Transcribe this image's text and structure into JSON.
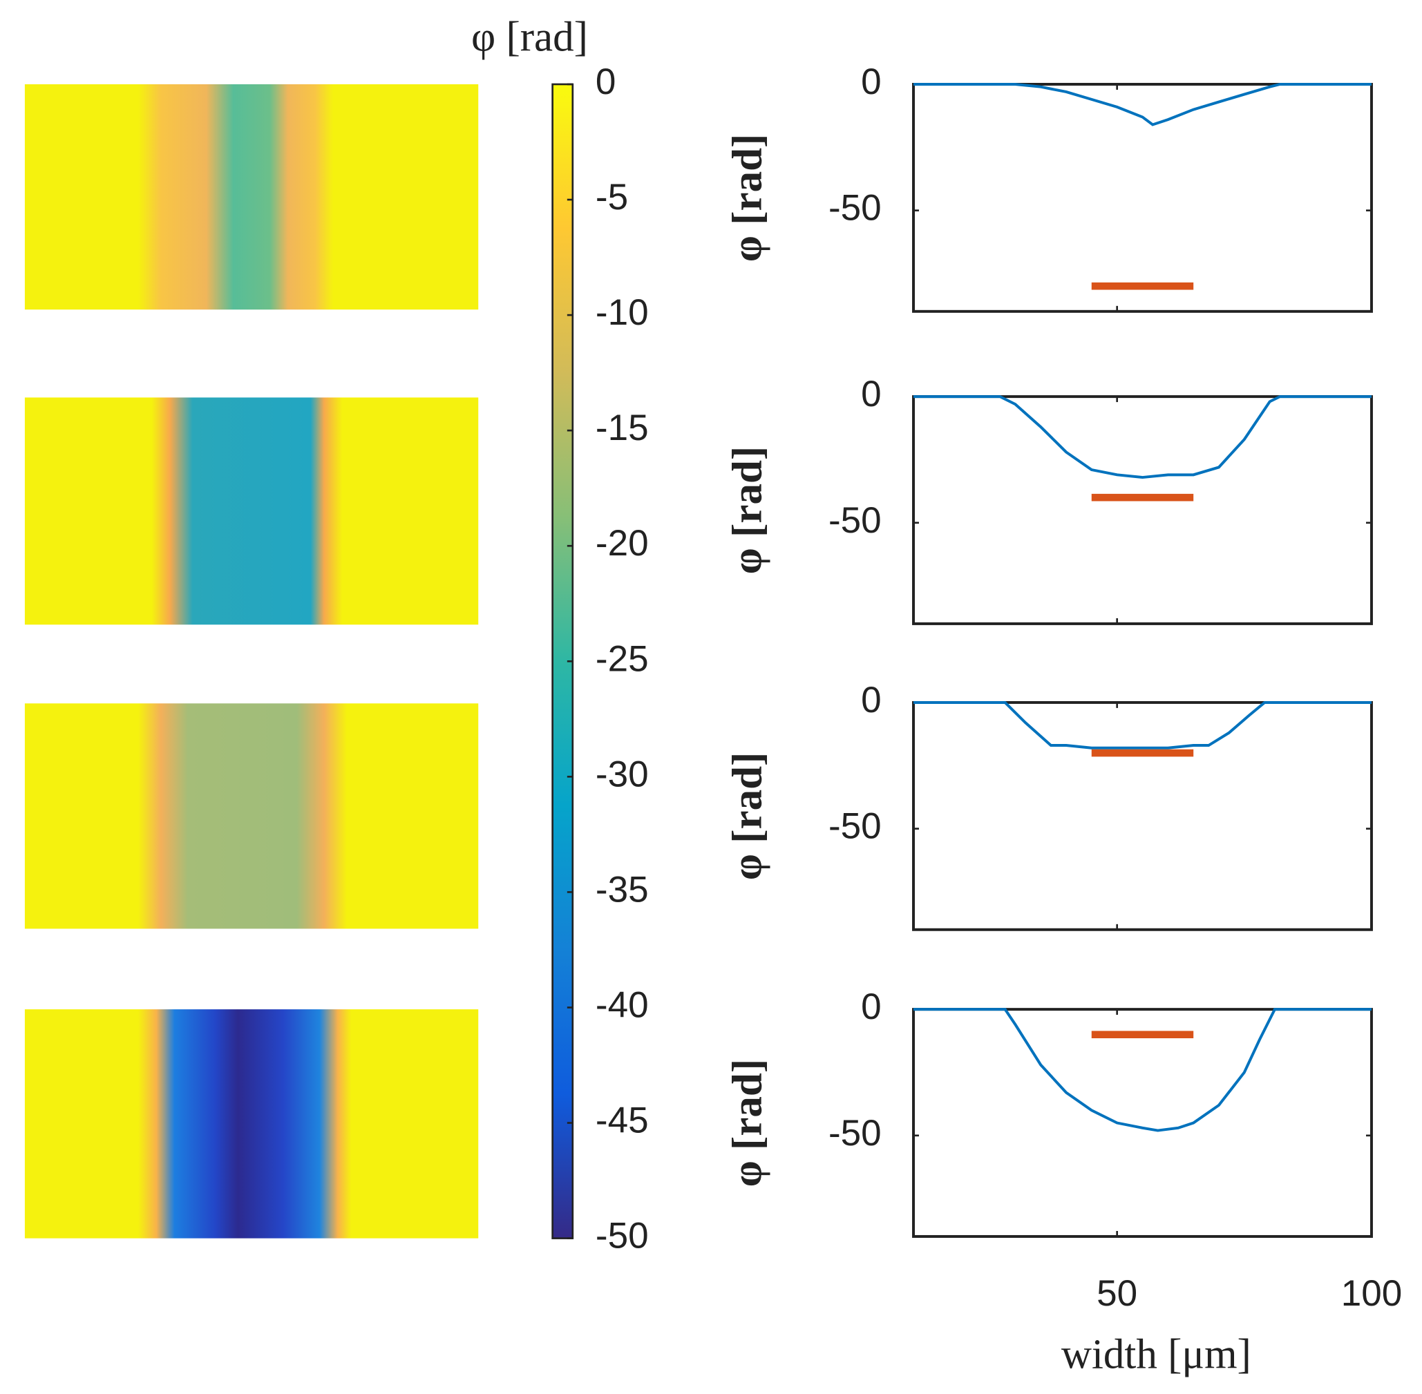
{
  "chart_data": [
    {
      "type": "colorbar",
      "label": "φ [rad]",
      "ylim": [
        -50,
        0
      ],
      "yticks": [
        0,
        -5,
        -10,
        -15,
        -20,
        -25,
        -30,
        -35,
        -40,
        -45,
        -50
      ],
      "colors": [
        "#352a87",
        "#0f5cdd",
        "#1481d6",
        "#06a4ca",
        "#2eb7a4",
        "#87bf77",
        "#d1bb59",
        "#fec832",
        "#f9fb0e"
      ]
    },
    {
      "type": "line",
      "ylabel": "φ [rad]",
      "xlim": [
        10,
        100
      ],
      "ylim": [
        -90,
        0
      ],
      "xticks": [
        50,
        100
      ],
      "yticks": [
        0,
        -50
      ],
      "show_xticklabels": false,
      "series": [
        {
          "color": "#0072bd",
          "x": [
            10,
            20,
            30,
            35,
            40,
            45,
            50,
            55,
            57,
            60,
            65,
            70,
            75,
            80,
            82,
            85,
            90,
            100
          ],
          "values": [
            0,
            0,
            0,
            -1,
            -3,
            -6,
            -9,
            -13,
            -16,
            -14,
            -10,
            -7,
            -4,
            -1,
            0,
            0,
            0,
            0
          ]
        },
        {
          "color": "#d95319",
          "x": [
            45,
            65
          ],
          "values": [
            -80,
            -80
          ]
        }
      ]
    },
    {
      "type": "line",
      "ylabel": "φ [rad]",
      "xlim": [
        10,
        100
      ],
      "ylim": [
        -90,
        0
      ],
      "xticks": [
        50,
        100
      ],
      "yticks": [
        0,
        -50
      ],
      "show_xticklabels": false,
      "series": [
        {
          "color": "#0072bd",
          "x": [
            10,
            20,
            27,
            30,
            35,
            40,
            45,
            50,
            55,
            60,
            65,
            70,
            75,
            80,
            82,
            85,
            90,
            100
          ],
          "values": [
            0,
            0,
            0,
            -3,
            -12,
            -22,
            -29,
            -31,
            -32,
            -31,
            -31,
            -28,
            -17,
            -2,
            0,
            0,
            0,
            0
          ]
        },
        {
          "color": "#d95319",
          "x": [
            45,
            65
          ],
          "values": [
            -40,
            -40
          ]
        }
      ]
    },
    {
      "type": "line",
      "ylabel": "φ [rad]",
      "xlim": [
        10,
        100
      ],
      "ylim": [
        -90,
        0
      ],
      "xticks": [
        50,
        100
      ],
      "yticks": [
        0,
        -50
      ],
      "show_xticklabels": false,
      "series": [
        {
          "color": "#0072bd",
          "x": [
            10,
            20,
            28,
            32,
            37,
            40,
            45,
            50,
            55,
            60,
            65,
            68,
            72,
            76,
            79,
            85,
            90,
            100
          ],
          "values": [
            0,
            0,
            0,
            -8,
            -17,
            -17,
            -18,
            -18,
            -18,
            -18,
            -17,
            -17,
            -12,
            -5,
            0,
            0,
            0,
            0
          ]
        },
        {
          "color": "#d95319",
          "x": [
            45,
            65
          ],
          "values": [
            -20,
            -20
          ]
        }
      ]
    },
    {
      "type": "line",
      "ylabel": "φ [rad]",
      "xlabel": "width [μm]",
      "xlim": [
        10,
        100
      ],
      "ylim": [
        -90,
        0
      ],
      "xticks": [
        50,
        100
      ],
      "yticks": [
        0,
        -50
      ],
      "show_xticklabels": true,
      "series": [
        {
          "color": "#0072bd",
          "x": [
            10,
            20,
            28,
            30,
            35,
            40,
            45,
            50,
            55,
            58,
            62,
            65,
            70,
            75,
            78,
            81,
            90,
            100
          ],
          "values": [
            0,
            0,
            0,
            -6,
            -22,
            -33,
            -40,
            -45,
            -47,
            -48,
            -47,
            -45,
            -38,
            -25,
            -12,
            0,
            0,
            0
          ]
        },
        {
          "color": "#d95319",
          "x": [
            45,
            65
          ],
          "values": [
            -10,
            -10
          ]
        }
      ]
    }
  ]
}
